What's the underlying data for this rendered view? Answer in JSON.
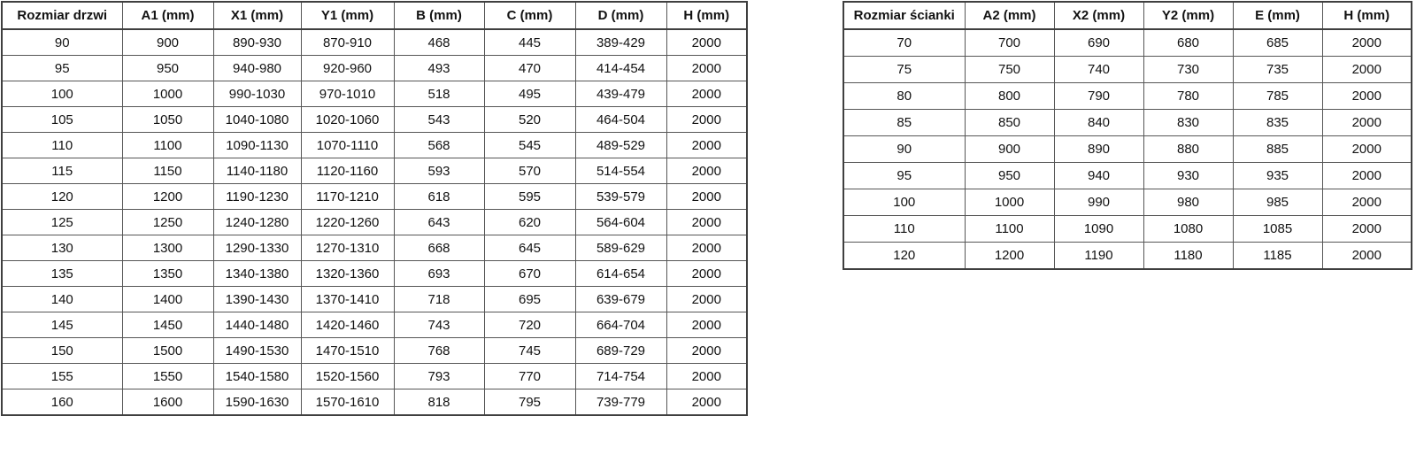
{
  "page": {
    "background_color": "#ffffff",
    "text_color": "#121212",
    "border_color": "#3f3f3f"
  },
  "tables": [
    {
      "id": "door-sizes",
      "name": "door-size-table",
      "headers": [
        "Rozmiar drzwi",
        "A1 (mm)",
        "X1 (mm)",
        "Y1 (mm)",
        "B (mm)",
        "C (mm)",
        "D (mm)",
        "H (mm)"
      ],
      "rows": [
        [
          "90",
          "900",
          "890-930",
          "870-910",
          "468",
          "445",
          "389-429",
          "2000"
        ],
        [
          "95",
          "950",
          "940-980",
          "920-960",
          "493",
          "470",
          "414-454",
          "2000"
        ],
        [
          "100",
          "1000",
          "990-1030",
          "970-1010",
          "518",
          "495",
          "439-479",
          "2000"
        ],
        [
          "105",
          "1050",
          "1040-1080",
          "1020-1060",
          "543",
          "520",
          "464-504",
          "2000"
        ],
        [
          "110",
          "1100",
          "1090-1130",
          "1070-1110",
          "568",
          "545",
          "489-529",
          "2000"
        ],
        [
          "115",
          "1150",
          "1140-1180",
          "1120-1160",
          "593",
          "570",
          "514-554",
          "2000"
        ],
        [
          "120",
          "1200",
          "1190-1230",
          "1170-1210",
          "618",
          "595",
          "539-579",
          "2000"
        ],
        [
          "125",
          "1250",
          "1240-1280",
          "1220-1260",
          "643",
          "620",
          "564-604",
          "2000"
        ],
        [
          "130",
          "1300",
          "1290-1330",
          "1270-1310",
          "668",
          "645",
          "589-629",
          "2000"
        ],
        [
          "135",
          "1350",
          "1340-1380",
          "1320-1360",
          "693",
          "670",
          "614-654",
          "2000"
        ],
        [
          "140",
          "1400",
          "1390-1430",
          "1370-1410",
          "718",
          "695",
          "639-679",
          "2000"
        ],
        [
          "145",
          "1450",
          "1440-1480",
          "1420-1460",
          "743",
          "720",
          "664-704",
          "2000"
        ],
        [
          "150",
          "1500",
          "1490-1530",
          "1470-1510",
          "768",
          "745",
          "689-729",
          "2000"
        ],
        [
          "155",
          "1550",
          "1540-1580",
          "1520-1560",
          "793",
          "770",
          "714-754",
          "2000"
        ],
        [
          "160",
          "1600",
          "1590-1630",
          "1570-1610",
          "818",
          "795",
          "739-779",
          "2000"
        ]
      ]
    },
    {
      "id": "wall-sizes",
      "name": "wall-size-table",
      "headers": [
        "Rozmiar ścianki",
        "A2 (mm)",
        "X2 (mm)",
        "Y2 (mm)",
        "E (mm)",
        "H (mm)"
      ],
      "rows": [
        [
          "70",
          "700",
          "690",
          "680",
          "685",
          "2000"
        ],
        [
          "75",
          "750",
          "740",
          "730",
          "735",
          "2000"
        ],
        [
          "80",
          "800",
          "790",
          "780",
          "785",
          "2000"
        ],
        [
          "85",
          "850",
          "840",
          "830",
          "835",
          "2000"
        ],
        [
          "90",
          "900",
          "890",
          "880",
          "885",
          "2000"
        ],
        [
          "95",
          "950",
          "940",
          "930",
          "935",
          "2000"
        ],
        [
          "100",
          "1000",
          "990",
          "980",
          "985",
          "2000"
        ],
        [
          "110",
          "1100",
          "1090",
          "1080",
          "1085",
          "2000"
        ],
        [
          "120",
          "1200",
          "1190",
          "1180",
          "1185",
          "2000"
        ]
      ]
    }
  ]
}
